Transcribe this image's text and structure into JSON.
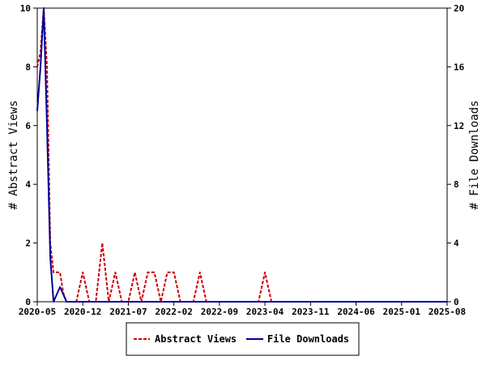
{
  "chart_data": {
    "type": "line",
    "x_tick_labels": [
      "2020-05",
      "2020-12",
      "2021-07",
      "2022-02",
      "2022-09",
      "2023-04",
      "2023-11",
      "2024-06",
      "2025-01",
      "2025-08"
    ],
    "yleft": {
      "label": "# Abstract Views",
      "ylim": [
        0,
        10
      ],
      "ticks": [
        0,
        2,
        4,
        6,
        8,
        10
      ]
    },
    "yright": {
      "label": "# File Downloads",
      "ylim": [
        0,
        20
      ],
      "ticks": [
        0,
        4,
        8,
        12,
        16,
        20
      ]
    },
    "xlim_months": [
      0,
      63
    ],
    "series": [
      {
        "name": "Abstract Views",
        "axis": "left",
        "color": "#cc0000",
        "dash": true,
        "points": [
          [
            0,
            8
          ],
          [
            0.5,
            8.5
          ],
          [
            1,
            10
          ],
          [
            1.5,
            8
          ],
          [
            2,
            2
          ],
          [
            2.5,
            1
          ],
          [
            3,
            1
          ],
          [
            3.5,
            1
          ],
          [
            4,
            0.3
          ],
          [
            4.5,
            0
          ],
          [
            5,
            0
          ],
          [
            6,
            0
          ],
          [
            7,
            1
          ],
          [
            8,
            0
          ],
          [
            9,
            0
          ],
          [
            10,
            2
          ],
          [
            11,
            0
          ],
          [
            12,
            1
          ],
          [
            13,
            0
          ],
          [
            14,
            0
          ],
          [
            15,
            1
          ],
          [
            16,
            0
          ],
          [
            17,
            1
          ],
          [
            18,
            1
          ],
          [
            19,
            0
          ],
          [
            20,
            1
          ],
          [
            21,
            1
          ],
          [
            22,
            0
          ],
          [
            23,
            0
          ],
          [
            24,
            0
          ],
          [
            25,
            1
          ],
          [
            26,
            0
          ],
          [
            27,
            0
          ],
          [
            28,
            0
          ],
          [
            29,
            0
          ],
          [
            30,
            0
          ],
          [
            31,
            0
          ],
          [
            32,
            0
          ],
          [
            33,
            0
          ],
          [
            34,
            0
          ],
          [
            35,
            1
          ],
          [
            36,
            0
          ],
          [
            37,
            0
          ],
          [
            40,
            0
          ],
          [
            45,
            0
          ],
          [
            50,
            0
          ],
          [
            55,
            0
          ],
          [
            60,
            0
          ],
          [
            63,
            0
          ]
        ]
      },
      {
        "name": "File Downloads",
        "axis": "right",
        "color": "#000099",
        "dash": false,
        "points": [
          [
            0,
            13
          ],
          [
            0.5,
            16
          ],
          [
            1,
            20
          ],
          [
            1.5,
            12
          ],
          [
            2,
            3
          ],
          [
            2.5,
            0
          ],
          [
            3,
            0.5
          ],
          [
            3.5,
            1
          ],
          [
            4,
            0.5
          ],
          [
            4.5,
            0
          ],
          [
            5,
            0
          ],
          [
            10,
            0
          ],
          [
            20,
            0
          ],
          [
            30,
            0
          ],
          [
            40,
            0
          ],
          [
            50,
            0
          ],
          [
            60,
            0
          ],
          [
            63,
            0
          ]
        ]
      }
    ],
    "legend_position": "bottom-center",
    "grid": false
  }
}
